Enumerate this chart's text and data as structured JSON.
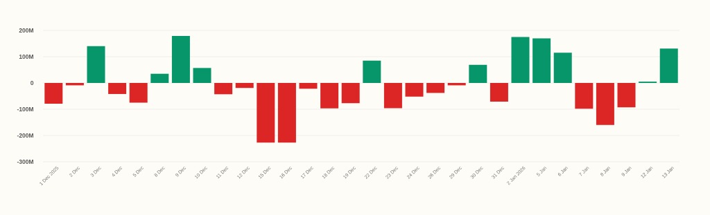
{
  "chart_data": {
    "type": "bar",
    "categories": [
      "1 Dec 2025",
      "2 Dec",
      "3 Dec",
      "4 Dec",
      "5 Dec",
      "8 Dec",
      "9 Dec",
      "10 Dec",
      "11 Dec",
      "12 Dec",
      "15 Dec",
      "16 Dec",
      "17 Dec",
      "18 Dec",
      "19 Dec",
      "22 Dec",
      "23 Dec",
      "24 Dec",
      "26 Dec",
      "29 Dec",
      "30 Dec",
      "31 Dec",
      "2 Jan 2026",
      "5 Jan",
      "6 Jan",
      "7 Jan",
      "8 Jan",
      "9 Jan",
      "12 Jan",
      "13 Jan"
    ],
    "values": [
      -79,
      -9,
      140,
      -42,
      -75,
      35,
      179,
      57,
      -43,
      -19,
      -227,
      -227,
      -22,
      -97,
      -77,
      85,
      -96,
      -52,
      -38,
      -9,
      69,
      -71,
      175,
      170,
      115,
      -98,
      -160,
      -93,
      5,
      131
    ],
    "colors": [
      "#dc2626",
      "#dc2626",
      "#069669",
      "#dc2626",
      "#dc2626",
      "#069669",
      "#069669",
      "#069669",
      "#dc2626",
      "#dc2626",
      "#dc2626",
      "#dc2626",
      "#dc2626",
      "#dc2626",
      "#dc2626",
      "#069669",
      "#dc2626",
      "#dc2626",
      "#dc2626",
      "#dc2626",
      "#069669",
      "#dc2626",
      "#069669",
      "#069669",
      "#069669",
      "#dc2626",
      "#dc2626",
      "#dc2626",
      "#069669",
      "#069669"
    ],
    "ylim": [
      -300,
      200
    ],
    "yticks": [
      {
        "value": -300,
        "label": "-300M"
      },
      {
        "value": -200,
        "label": "-200M"
      },
      {
        "value": -100,
        "label": "-100M"
      },
      0,
      {
        "value": 100,
        "label": "100M"
      },
      {
        "value": 200,
        "label": "200M"
      }
    ],
    "grid": "y"
  }
}
